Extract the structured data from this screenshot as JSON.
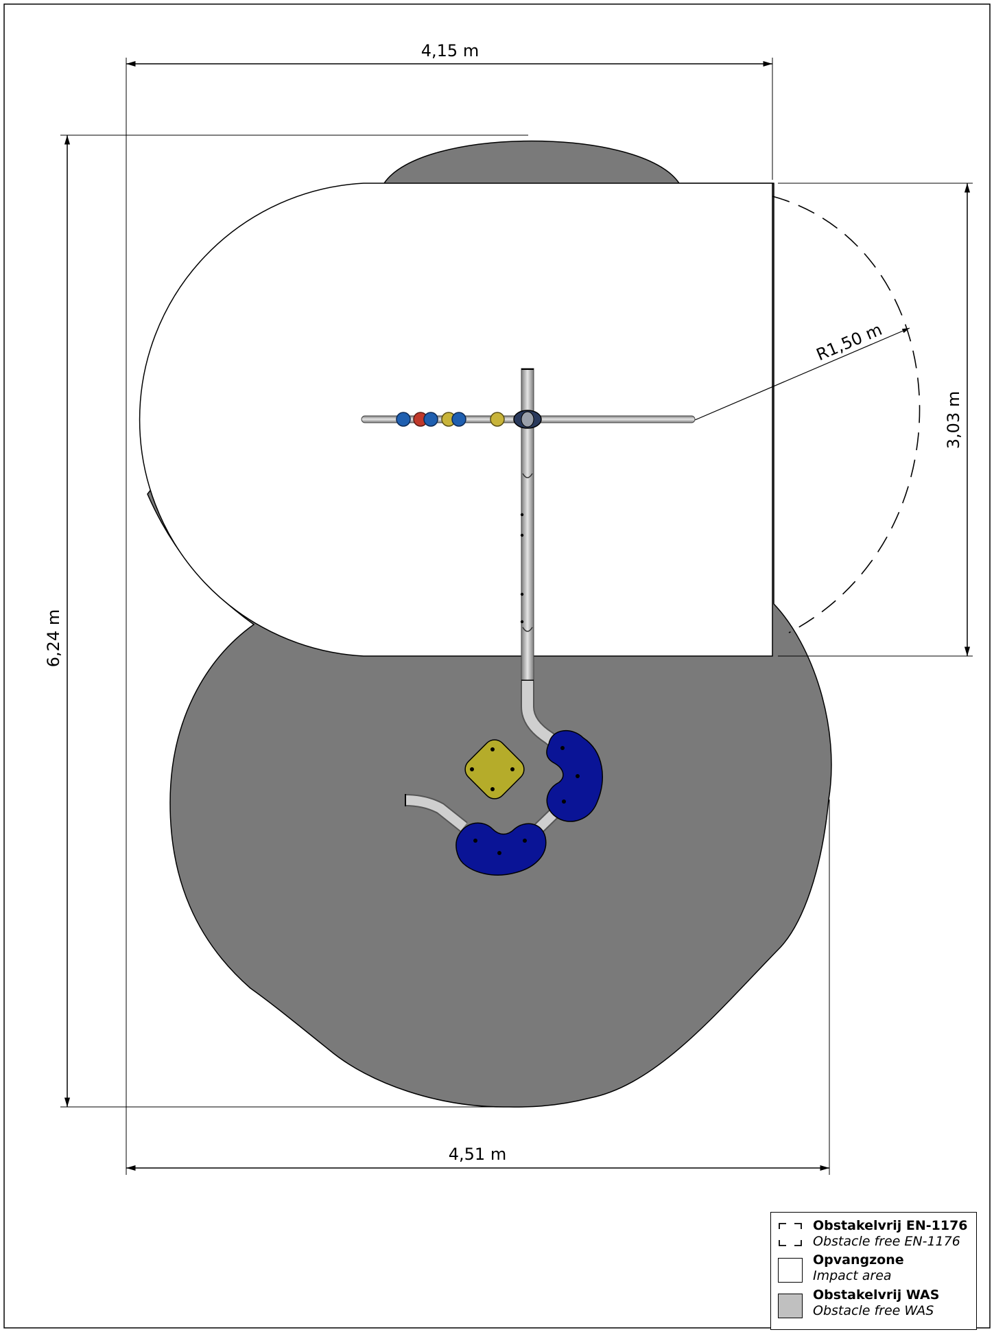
{
  "dimensions": {
    "top_width": "4,15 m",
    "total_height": "6,24 m",
    "right_height": "3,03 m",
    "radius": "R1,50 m",
    "bottom_width": "4,51 m"
  },
  "legend": {
    "obstacle_free_en": {
      "title": "Obstakelvrij EN-1176",
      "subtitle": "Obstacle free EN-1176",
      "style": "dashed"
    },
    "impact_area": {
      "title": "Opvangzone",
      "subtitle": "Impact area",
      "fill": "#ffffff"
    },
    "obstacle_free_was": {
      "title": "Obstakelvrij WAS",
      "subtitle": "Obstacle free WAS",
      "fill": "#c0c0c0"
    }
  },
  "colors": {
    "was_zone": "#7a7a7a",
    "impact_zone": "#ffffff",
    "pipe": "#c8c8c8",
    "hold_blue": "#0a1496",
    "hold_yellow": "#b5ac2a",
    "bead_blue": "#1f5fb0",
    "bead_red": "#c0392b",
    "bead_yellow": "#c8b43a"
  }
}
